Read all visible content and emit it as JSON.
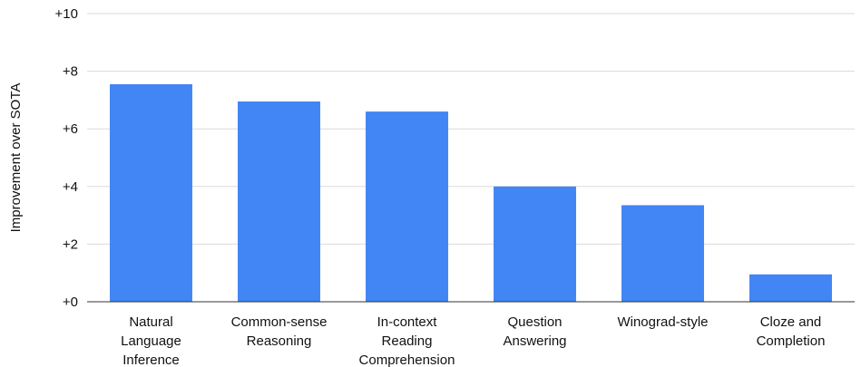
{
  "chart_data": {
    "type": "bar",
    "title": "",
    "xlabel": "",
    "ylabel": "Improvement over SOTA",
    "categories": [
      [
        "Natural",
        "Language",
        "Inference"
      ],
      [
        "Common-sense",
        "Reasoning"
      ],
      [
        "In-context",
        "Reading",
        "Comprehension"
      ],
      [
        "Question",
        "Answering"
      ],
      [
        "Winograd-style"
      ],
      [
        "Cloze and",
        "Completion"
      ]
    ],
    "values": [
      7.55,
      6.95,
      6.6,
      4.0,
      3.35,
      0.95
    ],
    "ylim": [
      0,
      10
    ],
    "yticks": [
      0,
      2,
      4,
      6,
      8,
      10
    ],
    "ytick_labels": [
      "+0",
      "+2",
      "+4",
      "+6",
      "+8",
      "+10"
    ],
    "grid": true,
    "legend": "none",
    "colors": {
      "bar": "#4285f4",
      "grid": "#dadada",
      "axis": "#333333"
    }
  }
}
